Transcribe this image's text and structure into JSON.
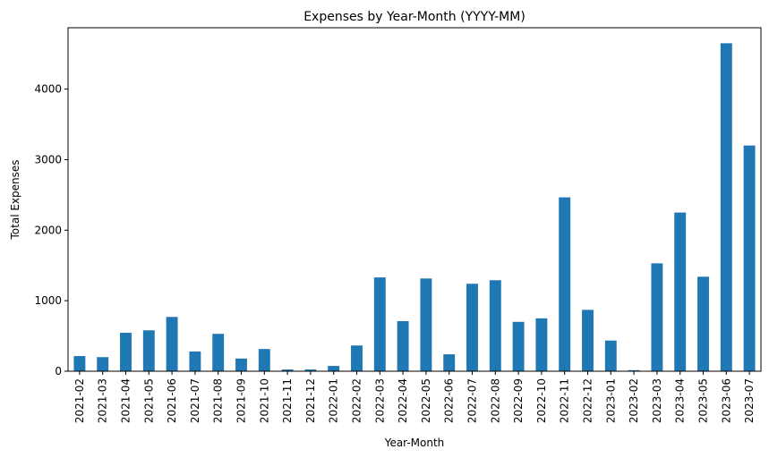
{
  "chart_data": {
    "type": "bar",
    "title": "Expenses by Year-Month (YYYY-MM)",
    "xlabel": "Year-Month",
    "ylabel": "Total Expenses",
    "ylim": [
      0,
      4870
    ],
    "yticks": [
      0,
      1000,
      2000,
      3000,
      4000
    ],
    "grid": false,
    "bar_color": "#1f77b4",
    "categories": [
      "2021-02",
      "2021-03",
      "2021-04",
      "2021-05",
      "2021-06",
      "2021-07",
      "2021-08",
      "2021-09",
      "2021-10",
      "2021-11",
      "2021-12",
      "2022-01",
      "2022-02",
      "2022-03",
      "2022-04",
      "2022-05",
      "2022-06",
      "2022-07",
      "2022-08",
      "2022-09",
      "2022-10",
      "2022-11",
      "2022-12",
      "2023-01",
      "2023-02",
      "2023-03",
      "2023-04",
      "2023-05",
      "2023-06",
      "2023-07"
    ],
    "values": [
      215,
      200,
      545,
      580,
      770,
      280,
      530,
      180,
      315,
      25,
      25,
      75,
      365,
      1330,
      710,
      1315,
      240,
      1240,
      1290,
      700,
      750,
      2465,
      870,
      435,
      15,
      1530,
      2250,
      1340,
      4650,
      3200
    ]
  }
}
